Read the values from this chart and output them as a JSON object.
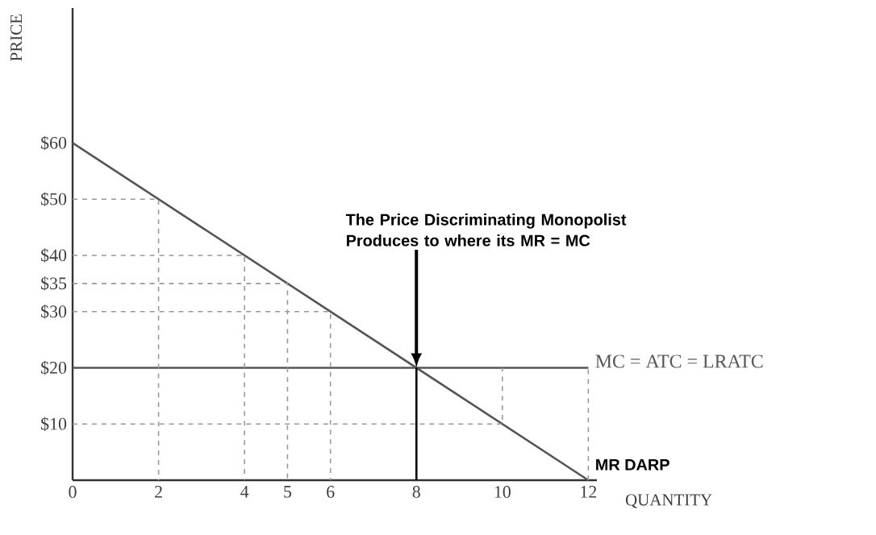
{
  "chart_data": {
    "type": "line",
    "xlabel": "QUANTITY",
    "ylabel": "PRICE",
    "xlim": [
      0,
      12.2
    ],
    "ylim": [
      0,
      84
    ],
    "xticks": [
      0,
      2,
      4,
      5,
      6,
      8,
      10,
      12
    ],
    "yticks": [
      {
        "value": 10,
        "label": "$10"
      },
      {
        "value": 20,
        "label": "$20"
      },
      {
        "value": 30,
        "label": "$30"
      },
      {
        "value": 35,
        "label": "$35"
      },
      {
        "value": 40,
        "label": "$40"
      },
      {
        "value": 50,
        "label": "$50"
      },
      {
        "value": 60,
        "label": "$60"
      }
    ],
    "series": [
      {
        "name": "MR DARP",
        "color": "#555555",
        "x": [
          0,
          12
        ],
        "values": [
          60,
          0
        ]
      },
      {
        "name": "MC = ATC = LRATC",
        "color": "#555555",
        "x": [
          0,
          12
        ],
        "values": [
          20,
          20
        ]
      },
      {
        "color": "#000000",
        "x": [
          8,
          8
        ],
        "values": [
          0,
          20
        ]
      },
      {
        "color": "#999999",
        "line_style": "dashed",
        "x": [
          0,
          2,
          2
        ],
        "values": [
          50,
          50,
          0
        ]
      },
      {
        "color": "#999999",
        "line_style": "dashed",
        "x": [
          0,
          4,
          4
        ],
        "values": [
          40,
          40,
          0
        ]
      },
      {
        "color": "#999999",
        "line_style": "dashed",
        "x": [
          0,
          5,
          5
        ],
        "values": [
          35,
          35,
          0
        ]
      },
      {
        "color": "#999999",
        "line_style": "dashed",
        "x": [
          0,
          6,
          6
        ],
        "values": [
          30,
          30,
          0
        ]
      },
      {
        "color": "#999999",
        "line_style": "dashed",
        "x": [
          0,
          10,
          10
        ],
        "values": [
          10,
          10,
          20
        ]
      },
      {
        "color": "#999999",
        "line_style": "dashed",
        "x": [
          12,
          12
        ],
        "values": [
          0,
          20
        ]
      }
    ],
    "annotations": [
      {
        "text": "The Price Discriminating Monopolist Produces to where its MR = MC",
        "x": 8,
        "y": 20
      }
    ]
  }
}
